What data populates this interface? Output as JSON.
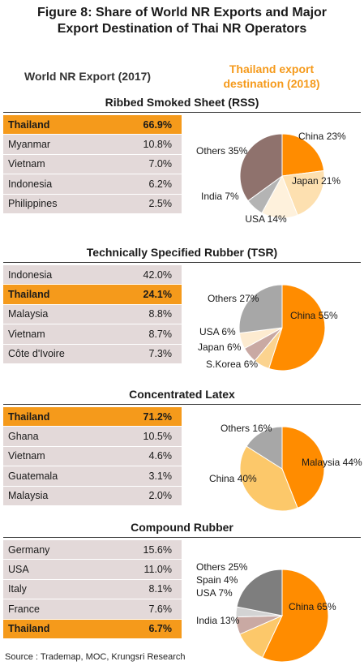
{
  "title_line1": "Figure 8: Share of World NR Exports and Major",
  "title_line2": "Export Destination of Thai NR Operators",
  "left_header": "World NR Export (2017)",
  "right_header_line1": "Thailand export",
  "right_header_line2": "destination (2018)",
  "source": "Source : Trademap, MOC, Krungsri Research",
  "colors": {
    "highlight": "#f59a1b",
    "table_bg": "#e3d9d9",
    "china": "#ff8c00",
    "japan": "#fbd38f",
    "usa": "#fde9c8",
    "india": "#b7b3b3",
    "others_dark": "#8f726d",
    "others_gray": "#a7a7a7"
  },
  "chart_data": [
    {
      "type": "table",
      "title": "Ribbed Smoked Sheet (RSS)",
      "rows": [
        {
          "country": "Thailand",
          "share": "66.9%",
          "highlight": true
        },
        {
          "country": "Myanmar",
          "share": "10.8%",
          "highlight": false
        },
        {
          "country": "Vietnam",
          "share": "7.0%",
          "highlight": false
        },
        {
          "country": "Indonesia",
          "share": "6.2%",
          "highlight": false
        },
        {
          "country": "Philippines",
          "share": "2.5%",
          "highlight": false
        }
      ],
      "pie": {
        "type": "pie",
        "slices": [
          {
            "label": "China 23%",
            "value": 23,
            "color": "#ff8c00"
          },
          {
            "label": "Japan 21%",
            "value": 21,
            "color": "#fde0b0"
          },
          {
            "label": "USA 14%",
            "value": 14,
            "color": "#fef1dc"
          },
          {
            "label": "India 7%",
            "value": 7,
            "color": "#b4b4b4"
          },
          {
            "label": "Others 35%",
            "value": 35,
            "color": "#8f726d"
          }
        ]
      }
    },
    {
      "type": "table",
      "title": "Technically Specified Rubber (TSR)",
      "rows": [
        {
          "country": "Indonesia",
          "share": "42.0%",
          "highlight": false
        },
        {
          "country": "Thailand",
          "share": "24.1%",
          "highlight": true
        },
        {
          "country": "Malaysia",
          "share": "8.8%",
          "highlight": false
        },
        {
          "country": "Vietnam",
          "share": "8.7%",
          "highlight": false
        },
        {
          "country": "Côte d'Ivoire",
          "share": "7.3%",
          "highlight": false
        }
      ],
      "pie": {
        "type": "pie",
        "slices": [
          {
            "label": "China 55%",
            "value": 55,
            "color": "#ff8c00"
          },
          {
            "label": "S.Korea 6%",
            "value": 6,
            "color": "#fbd38f"
          },
          {
            "label": "Japan 6%",
            "value": 6,
            "color": "#c9a9a3"
          },
          {
            "label": "USA 6%",
            "value": 6,
            "color": "#fdebd0"
          },
          {
            "label": "Others 27%",
            "value": 27,
            "color": "#a7a7a7"
          }
        ]
      }
    },
    {
      "type": "table",
      "title": "Concentrated Latex",
      "rows": [
        {
          "country": "Thailand",
          "share": "71.2%",
          "highlight": true
        },
        {
          "country": "Ghana",
          "share": "10.5%",
          "highlight": false
        },
        {
          "country": "Vietnam",
          "share": "4.6%",
          "highlight": false
        },
        {
          "country": "Guatemala",
          "share": "3.1%",
          "highlight": false
        },
        {
          "country": "Malaysia",
          "share": "2.0%",
          "highlight": false
        }
      ],
      "pie": {
        "type": "pie",
        "slices": [
          {
            "label": "Malaysia 44%",
            "value": 44,
            "color": "#ff8c00"
          },
          {
            "label": "China 40%",
            "value": 40,
            "color": "#fcc86a"
          },
          {
            "label": "Others 16%",
            "value": 16,
            "color": "#a7a7a7"
          }
        ]
      }
    },
    {
      "type": "table",
      "title": "Compound Rubber",
      "rows": [
        {
          "country": "Germany",
          "share": "15.6%",
          "highlight": false
        },
        {
          "country": "USA",
          "share": "11.0%",
          "highlight": false
        },
        {
          "country": "Italy",
          "share": "8.1%",
          "highlight": false
        },
        {
          "country": "France",
          "share": "7.6%",
          "highlight": false
        },
        {
          "country": "Thailand",
          "share": "6.7%",
          "highlight": true
        }
      ],
      "pie": {
        "type": "pie",
        "slices": [
          {
            "label": "China 65%",
            "value": 65,
            "color": "#ff8c00"
          },
          {
            "label": "India 13%",
            "value": 13,
            "color": "#fcc86a"
          },
          {
            "label": "USA 7%",
            "value": 7,
            "color": "#c9a9a3"
          },
          {
            "label": "Spain 4%",
            "value": 4,
            "color": "#d3d3d3"
          },
          {
            "label": "Others 25%",
            "value": 25,
            "color": "#7e7e7e"
          }
        ]
      }
    }
  ]
}
